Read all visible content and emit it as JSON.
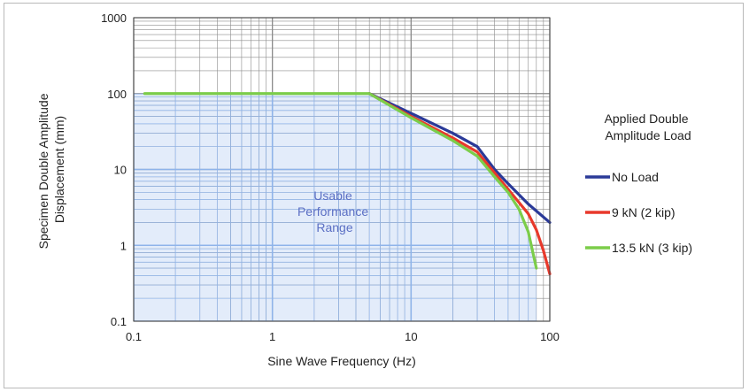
{
  "chart_data": {
    "type": "line",
    "xlabel": "Sine Wave Frequency (Hz)",
    "ylabel_lines": [
      "Specimen Double Amplitude",
      "Displacement (mm)"
    ],
    "x_scale": "log",
    "y_scale": "log",
    "xlim": [
      0.1,
      100
    ],
    "ylim": [
      0.1,
      1000
    ],
    "x_ticks": [
      "0.1",
      "1",
      "10",
      "100"
    ],
    "y_ticks": [
      "0.1",
      "1",
      "10",
      "100",
      "1000"
    ],
    "grid": true,
    "annotation_lines": [
      "Usable",
      "Performance",
      "Range"
    ],
    "legend": {
      "title_lines": [
        "Applied Double",
        "Amplitude Load"
      ],
      "placement": "right"
    },
    "series": [
      {
        "name": "No Load",
        "color": "#2b3a98",
        "points": [
          [
            5,
            100
          ],
          [
            10,
            55
          ],
          [
            20,
            30
          ],
          [
            30,
            20
          ],
          [
            40,
            10
          ],
          [
            50,
            6.5
          ],
          [
            70,
            3.5
          ],
          [
            100,
            2.0
          ]
        ]
      },
      {
        "name": "9 kN (2 kip)",
        "color": "#e8392b",
        "points": [
          [
            5,
            100
          ],
          [
            10,
            50
          ],
          [
            20,
            26
          ],
          [
            30,
            17
          ],
          [
            40,
            9
          ],
          [
            50,
            5.5
          ],
          [
            70,
            2.6
          ],
          [
            80,
            1.6
          ],
          [
            90,
            0.85
          ],
          [
            100,
            0.42
          ]
        ]
      },
      {
        "name": "13.5 kN (3 kip)",
        "color": "#7ccd4a",
        "points": [
          [
            0.12,
            100
          ],
          [
            5,
            100
          ],
          [
            10,
            48
          ],
          [
            20,
            24
          ],
          [
            30,
            15
          ],
          [
            40,
            8
          ],
          [
            50,
            5
          ],
          [
            60,
            3
          ],
          [
            70,
            1.5
          ],
          [
            80,
            0.5
          ]
        ]
      }
    ]
  }
}
